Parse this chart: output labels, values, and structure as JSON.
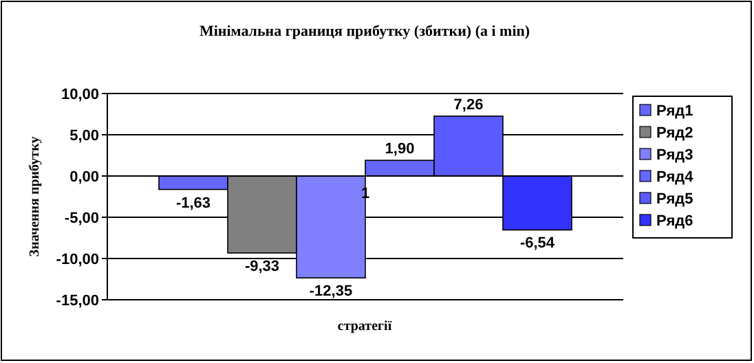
{
  "chart_data": {
    "type": "bar",
    "title": "Мінімальна границя прибутку (збитки) (a i min)",
    "xlabel": "стратегії",
    "ylabel": "Значення прибутку",
    "categories": [
      "1"
    ],
    "series": [
      {
        "name": "Ряд1",
        "color": "#6666ff",
        "values": [
          -1.63
        ],
        "value_labels": [
          "-1,63"
        ]
      },
      {
        "name": "Ряд2",
        "color": "#808080",
        "values": [
          -9.33
        ],
        "value_labels": [
          "-9,33"
        ]
      },
      {
        "name": "Ряд3",
        "color": "#8080ff",
        "values": [
          -12.35
        ],
        "value_labels": [
          "-12,35"
        ]
      },
      {
        "name": "Ряд4",
        "color": "#6666ff",
        "values": [
          1.9
        ],
        "value_labels": [
          "1,90"
        ]
      },
      {
        "name": "Ряд5",
        "color": "#5a5aff",
        "values": [
          7.26
        ],
        "value_labels": [
          "7,26"
        ]
      },
      {
        "name": "Ряд6",
        "color": "#3333ff",
        "values": [
          -6.54
        ],
        "value_labels": [
          "-6,54"
        ]
      }
    ],
    "ylim": [
      -15,
      10
    ],
    "yticks": [
      {
        "value": -15,
        "label": "-15,00"
      },
      {
        "value": -10,
        "label": "-10,00"
      },
      {
        "value": -5,
        "label": "-5,00"
      },
      {
        "value": 0,
        "label": "0,00"
      },
      {
        "value": 5,
        "label": "5,00"
      },
      {
        "value": 10,
        "label": "10,00"
      }
    ],
    "grid": "y",
    "legend": "right"
  }
}
